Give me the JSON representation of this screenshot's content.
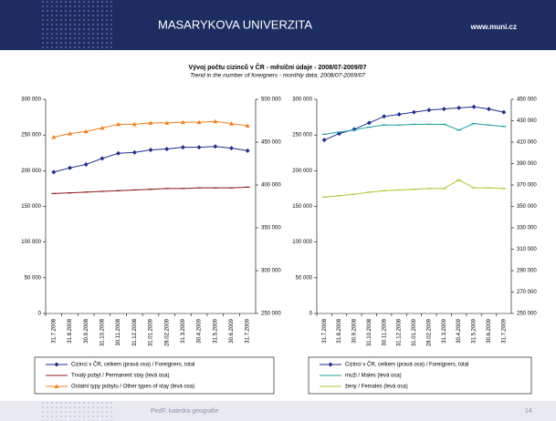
{
  "header": {
    "university": "MASARYKOVA UNIVERZITA",
    "url": "www.muni.cz"
  },
  "slide_title": "Vývoj počtu cizinců v ČR - měsíční údaje - 2008/07-2009/07",
  "slide_subtitle": "Trend in the number of foreigners - monthly data; 2008/07-2009/07",
  "footer": {
    "text": "PedF, katedra geografie",
    "page": "14"
  },
  "chart_data": [
    {
      "type": "line",
      "categories": [
        "31.7.2008",
        "31.8.2008",
        "30.9.2008",
        "31.10.2008",
        "30.11.2008",
        "31.12.2008",
        "31.01.2009",
        "28.02.2009",
        "31.3.2009",
        "30.4.2009",
        "31.5.2009",
        "30.6.2009",
        "31.7.2009"
      ],
      "ylim": [
        0,
        300000
      ],
      "yticks": [
        0,
        {
          "value": 50000,
          "label": "50 000"
        },
        {
          "value": 100000,
          "label": "100 000"
        },
        {
          "value": 150000,
          "label": "150 000"
        },
        {
          "value": 200000,
          "label": "200 000"
        },
        {
          "value": 250000,
          "label": "250 000"
        },
        {
          "value": 300000,
          "label": "300 000"
        }
      ],
      "y2lim": [
        250000,
        500000
      ],
      "y2ticks": [
        {
          "value": 250000,
          "label": "250 000"
        },
        {
          "value": 300000,
          "label": "300 000"
        },
        {
          "value": 350000,
          "label": "350 000"
        },
        {
          "value": 400000,
          "label": "400 000"
        },
        {
          "value": 450000,
          "label": "450 000"
        },
        {
          "value": 500000,
          "label": "500 000"
        }
      ],
      "series": [
        {
          "name": "Cizinci v ČR, celkem (pravá osa) / Foreigners, total",
          "color": "#1f2f8a",
          "marker": "diamond",
          "axis": "y2",
          "values": [
            415000,
            420000,
            424000,
            431000,
            437000,
            438000,
            441000,
            442000,
            444000,
            444000,
            445000,
            443000,
            440000
          ]
        },
        {
          "name": "Trvalý pobyt / Permanent stay (levá osa)",
          "color": "#8b1a1a",
          "marker": "dash",
          "values": [
            168000,
            169000,
            170000,
            171000,
            172000,
            173000,
            174000,
            175000,
            175000,
            176000,
            176000,
            176000,
            177000
          ]
        },
        {
          "name": "Ostatní typy pobytu / Other types of stay (levá osa)",
          "color": "#f08020",
          "marker": "triangle",
          "values": [
            247000,
            252000,
            255000,
            260000,
            265000,
            265000,
            267000,
            267000,
            268000,
            268000,
            269000,
            266000,
            263000
          ]
        }
      ]
    },
    {
      "type": "line",
      "categories": [
        "31.7.2008",
        "31.8.2008",
        "30.9.2008",
        "31.10.2008",
        "30.11.2008",
        "31.12.2008",
        "31.01.2009",
        "28.02.2009",
        "31.3.2009",
        "30.4.2009",
        "31.5.2009",
        "30.6.2009",
        "31.7.2009"
      ],
      "ylim": [
        0,
        300000
      ],
      "yticks": [
        0,
        {
          "value": 50000,
          "label": "50 000"
        },
        {
          "value": 100000,
          "label": "100 000"
        },
        {
          "value": 150000,
          "label": "150 000"
        },
        {
          "value": 200000,
          "label": "200 000"
        },
        {
          "value": 250000,
          "label": "250 000"
        },
        {
          "value": 300000,
          "label": "300 000"
        }
      ],
      "y2lim": [
        250000,
        450000
      ],
      "y2ticks": [
        {
          "value": 250000,
          "label": "250 000"
        },
        {
          "value": 270000,
          "label": "270 000"
        },
        {
          "value": 290000,
          "label": "290 000"
        },
        {
          "value": 310000,
          "label": "310 000"
        },
        {
          "value": 330000,
          "label": "330 000"
        },
        {
          "value": 350000,
          "label": "350 000"
        },
        {
          "value": 370000,
          "label": "370 000"
        },
        {
          "value": 390000,
          "label": "390 000"
        },
        {
          "value": 410000,
          "label": "410 000"
        },
        {
          "value": 430000,
          "label": "430 000"
        },
        {
          "value": 450000,
          "label": "450 000"
        }
      ],
      "series": [
        {
          "name": "Cizinci v ČR, celkem (pravá osa) / Foreigners, total",
          "color": "#1f2f8a",
          "marker": "diamond",
          "axis": "y2",
          "values": [
            412000,
            418000,
            422000,
            428000,
            434000,
            436000,
            438000,
            440000,
            441000,
            442000,
            443000,
            441000,
            438000
          ]
        },
        {
          "name": "muži / Males (levá osa)",
          "color": "#20a0a0",
          "marker": "dash",
          "values": [
            251000,
            254000,
            257000,
            261000,
            264000,
            264000,
            265000,
            265000,
            265000,
            257000,
            266000,
            264000,
            262000
          ]
        },
        {
          "name": "ženy / Females (levá osa)",
          "color": "#a8c830",
          "marker": "dash",
          "values": [
            163000,
            165000,
            167000,
            170000,
            172000,
            173000,
            174000,
            175000,
            175000,
            187000,
            176000,
            176000,
            175000
          ]
        }
      ]
    }
  ]
}
